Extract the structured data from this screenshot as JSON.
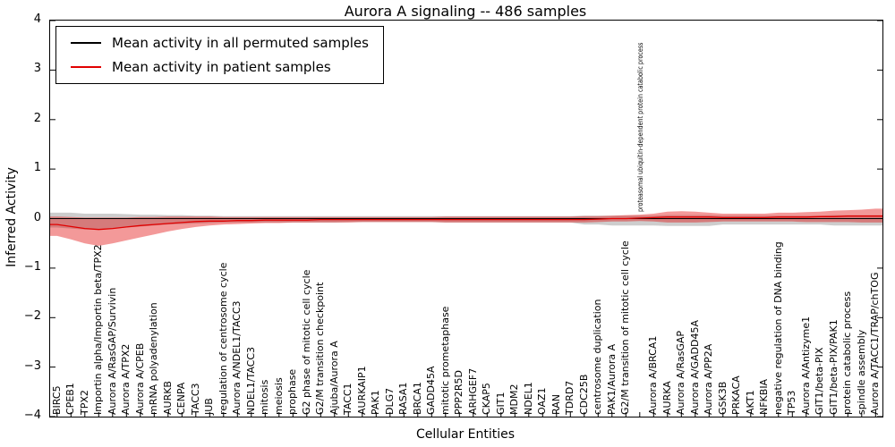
{
  "title": "Aurora A signaling -- 486 samples",
  "legend": {
    "items": [
      {
        "label": "Mean activity in all permuted samples",
        "color": "#000000"
      },
      {
        "label": "Mean activity in patient samples",
        "color": "#e10000"
      }
    ]
  },
  "axes": {
    "ylabel": "Inferred Activity",
    "xlabel": "Cellular Entities",
    "ylim": [
      -4,
      4
    ],
    "yticks": [
      -4,
      -3,
      -2,
      -1,
      0,
      1,
      2,
      3,
      4
    ]
  },
  "chart_data": {
    "type": "line",
    "title": "Aurora A signaling -- 486 samples",
    "xlabel": "Cellular Entities",
    "ylabel": "Inferred Activity",
    "ylim": [
      -4,
      4
    ],
    "grid": false,
    "legend_position": "upper left",
    "label_above_index": 42,
    "categories": [
      "BIRC5",
      "CPEB1",
      "TPX2",
      "Importin alpha/Importin beta/TPX2",
      "Aurora A/RasGAP/Survivin",
      "Aurora A/TPX2",
      "Aurora A/CPEB",
      "mRNA polyadenylation",
      "AURKB",
      "CENPA",
      "TACC3",
      "JUB",
      "regulation of centrosome cycle",
      "Aurora A/NDEL1/TACC3",
      "NDEL1/TACC3",
      "mitosis",
      "meiosis",
      "prophase",
      "G2 phase of mitotic cell cycle",
      "G2/M transition checkpoint",
      "Ajuba/Aurora A",
      "TACC1",
      "AURKAIP1",
      "PAK1",
      "DLG7",
      "RASA1",
      "BRCA1",
      "GADD45A",
      "mitotic prometaphase",
      "PPP2R5D",
      "ARHGEF7",
      "CKAP5",
      "GIT1",
      "MDM2",
      "NDEL1",
      "OAZ1",
      "RAN",
      "TDRD7",
      "CDC25B",
      "centrosome duplication",
      "PAK1/Aurora A",
      "G2/M transition of mitotic cell cycle",
      "proteasomal ubiquitin-dependent protein catabolic process",
      "Aurora A/BRCA1",
      "AURKA",
      "Aurora A/RasGAP",
      "Aurora A/GADD45A",
      "Aurora A/PP2A",
      "GSK3B",
      "PRKACA",
      "AKT1",
      "NFKBIA",
      "negative regulation of DNA binding",
      "TP53",
      "Aurora A/Antizyme1",
      "GIT1/beta-PIX",
      "GIT1/beta-PIX/PAK1",
      "protein catabolic process",
      "spindle assembly",
      "Aurora A/TACC1/TRAP/chTOG"
    ],
    "series": [
      {
        "name": "Mean activity in all permuted samples",
        "color": "#000000",
        "band_color": "#909090",
        "values": [
          0,
          0,
          0,
          0,
          0,
          0,
          0,
          0,
          0,
          0,
          0,
          0,
          0,
          0,
          0,
          0,
          0,
          0,
          0,
          0,
          0,
          0,
          0,
          0,
          0,
          0,
          0,
          0,
          0,
          0,
          0,
          0,
          0,
          0,
          0,
          0,
          0,
          0,
          0,
          0,
          0,
          0,
          0,
          0,
          0,
          0,
          0,
          0,
          0,
          0,
          0,
          0,
          0,
          0,
          0,
          0,
          0,
          0,
          0,
          0
        ],
        "band_upper": [
          0.12,
          0.12,
          0.1,
          0.1,
          0.1,
          0.09,
          0.08,
          0.08,
          0.07,
          0.07,
          0.06,
          0.06,
          0.05,
          0.05,
          0.05,
          0.05,
          0.05,
          0.05,
          0.05,
          0.05,
          0.05,
          0.05,
          0.05,
          0.05,
          0.05,
          0.05,
          0.05,
          0.05,
          0.05,
          0.05,
          0.05,
          0.05,
          0.05,
          0.05,
          0.05,
          0.05,
          0.05,
          0.05,
          0.06,
          0.06,
          0.06,
          0.06,
          0.06,
          0.06,
          0.07,
          0.07,
          0.07,
          0.07,
          0.06,
          0.06,
          0.06,
          0.06,
          0.06,
          0.06,
          0.06,
          0.06,
          0.07,
          0.07,
          0.07,
          0.07
        ],
        "band_lower": [
          -0.18,
          -0.2,
          -0.22,
          -0.22,
          -0.2,
          -0.18,
          -0.16,
          -0.14,
          -0.12,
          -0.11,
          -0.1,
          -0.09,
          -0.08,
          -0.08,
          -0.08,
          -0.08,
          -0.08,
          -0.08,
          -0.08,
          -0.08,
          -0.08,
          -0.07,
          -0.07,
          -0.07,
          -0.07,
          -0.07,
          -0.07,
          -0.07,
          -0.08,
          -0.08,
          -0.08,
          -0.08,
          -0.08,
          -0.08,
          -0.08,
          -0.08,
          -0.08,
          -0.08,
          -0.12,
          -0.12,
          -0.14,
          -0.14,
          -0.14,
          -0.14,
          -0.15,
          -0.15,
          -0.15,
          -0.15,
          -0.12,
          -0.12,
          -0.12,
          -0.12,
          -0.12,
          -0.12,
          -0.12,
          -0.12,
          -0.14,
          -0.14,
          -0.14,
          -0.14
        ]
      },
      {
        "name": "Mean activity in patient samples",
        "color": "#e10000",
        "band_color": "#e10000",
        "values": [
          -0.12,
          -0.16,
          -0.2,
          -0.22,
          -0.2,
          -0.17,
          -0.14,
          -0.12,
          -0.1,
          -0.08,
          -0.06,
          -0.05,
          -0.05,
          -0.04,
          -0.04,
          -0.03,
          -0.03,
          -0.03,
          -0.03,
          -0.02,
          -0.02,
          -0.02,
          -0.02,
          -0.02,
          -0.02,
          -0.02,
          -0.02,
          -0.02,
          -0.02,
          -0.02,
          -0.02,
          -0.02,
          -0.02,
          -0.02,
          -0.02,
          -0.02,
          -0.02,
          -0.02,
          -0.02,
          -0.01,
          0.0,
          0.0,
          0.01,
          0.02,
          0.03,
          0.03,
          0.03,
          0.03,
          0.02,
          0.02,
          0.02,
          0.02,
          0.03,
          0.03,
          0.03,
          0.04,
          0.04,
          0.05,
          0.05,
          0.05
        ],
        "band_upper": [
          0.04,
          0.03,
          0.02,
          0.02,
          0.02,
          0.02,
          0.03,
          0.03,
          0.04,
          0.04,
          0.04,
          0.04,
          0.03,
          0.03,
          0.03,
          0.03,
          0.03,
          0.03,
          0.03,
          0.03,
          0.03,
          0.03,
          0.03,
          0.03,
          0.03,
          0.03,
          0.03,
          0.03,
          0.04,
          0.04,
          0.04,
          0.04,
          0.04,
          0.04,
          0.04,
          0.04,
          0.04,
          0.04,
          0.05,
          0.05,
          0.06,
          0.07,
          0.08,
          0.1,
          0.14,
          0.15,
          0.14,
          0.12,
          0.1,
          0.1,
          0.1,
          0.1,
          0.12,
          0.12,
          0.13,
          0.14,
          0.16,
          0.17,
          0.18,
          0.2
        ],
        "band_lower": [
          -0.35,
          -0.42,
          -0.5,
          -0.55,
          -0.5,
          -0.44,
          -0.38,
          -0.32,
          -0.26,
          -0.21,
          -0.17,
          -0.14,
          -0.12,
          -0.11,
          -0.1,
          -0.09,
          -0.09,
          -0.08,
          -0.08,
          -0.08,
          -0.08,
          -0.08,
          -0.07,
          -0.07,
          -0.07,
          -0.07,
          -0.07,
          -0.07,
          -0.08,
          -0.08,
          -0.08,
          -0.08,
          -0.08,
          -0.08,
          -0.08,
          -0.08,
          -0.08,
          -0.08,
          -0.08,
          -0.07,
          -0.06,
          -0.06,
          -0.05,
          -0.06,
          -0.08,
          -0.08,
          -0.08,
          -0.07,
          -0.06,
          -0.06,
          -0.06,
          -0.06,
          -0.06,
          -0.06,
          -0.07,
          -0.07,
          -0.07,
          -0.07,
          -0.08,
          -0.08
        ]
      }
    ]
  }
}
